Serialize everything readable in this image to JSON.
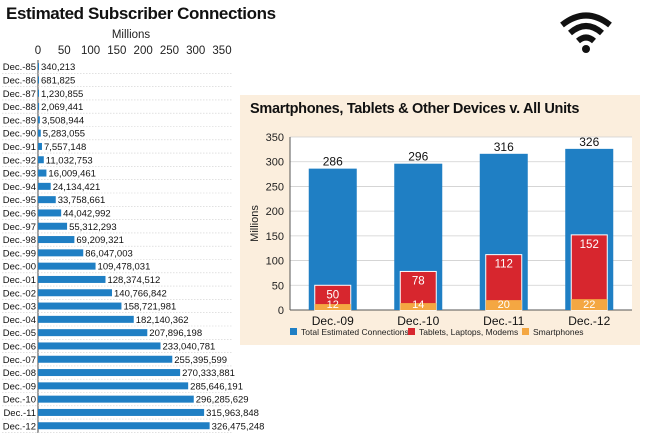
{
  "title": "Estimated Subscriber Connections",
  "chart_data": [
    {
      "type": "bar",
      "orientation": "horizontal",
      "title": "Estimated Subscriber Connections",
      "xlabel": "Millions",
      "xlim": [
        0,
        350
      ],
      "ticks": [
        0,
        50,
        100,
        150,
        200,
        250,
        300,
        350
      ],
      "color": "#1f7fc4",
      "categories": [
        "Dec.-85",
        "Dec.-86",
        "Dec.-87",
        "Dec.-88",
        "Dec.-89",
        "Dec.-90",
        "Dec.-91",
        "Dec.-92",
        "Dec.-93",
        "Dec.-94",
        "Dec.-95",
        "Dec.-96",
        "Dec.-97",
        "Dec.-98",
        "Dec.-99",
        "Dec.-00",
        "Dec.-01",
        "Dec.-02",
        "Dec.-03",
        "Dec.-04",
        "Dec.-05",
        "Dec.-06",
        "Dec.-07",
        "Dec.-08",
        "Dec.-09",
        "Dec.-10",
        "Dec.-11",
        "Dec.-12"
      ],
      "values": [
        340213,
        681825,
        1230855,
        2069441,
        3508944,
        5283055,
        7557148,
        11032753,
        16009461,
        24134421,
        33758661,
        44042992,
        55312293,
        69209321,
        86047003,
        109478031,
        128374512,
        140766842,
        158721981,
        182140362,
        207896198,
        233040781,
        255395599,
        270333881,
        285646191,
        296285629,
        315963848,
        326475248
      ],
      "labels": [
        "340,213",
        "681,825",
        "1,230,855",
        "2,069,441",
        "3,508,944",
        "5,283,055",
        "7,557,148",
        "11,032,753",
        "16,009,461",
        "24,134,421",
        "33,758,661",
        "44,042,992",
        "55,312,293",
        "69,209,321",
        "86,047,003",
        "109,478,031",
        "128,374,512",
        "140,766,842",
        "158,721,981",
        "182,140,362",
        "207,896,198",
        "233,040,781",
        "255,395,599",
        "270,333,881",
        "285,646,191",
        "296,285,629",
        "315,963,848",
        "326,475,248"
      ]
    },
    {
      "type": "bar",
      "title": "Smartphones, Tablets & Other Devices v. All Units",
      "ylabel": "Millions",
      "ylim": [
        0,
        350
      ],
      "ticks": [
        0,
        50,
        100,
        150,
        200,
        250,
        300,
        350
      ],
      "grid": true,
      "categories": [
        "Dec.-09",
        "Dec.-10",
        "Dec.-11",
        "Dec.-12"
      ],
      "series": [
        {
          "name": "Total Estimated Connections",
          "color": "#1f7fc4",
          "values": [
            286,
            296,
            316,
            326
          ]
        },
        {
          "name": "Tablets, Laptops, Modems",
          "color": "#d7262e",
          "values": [
            50,
            78,
            112,
            152
          ]
        },
        {
          "name": "Smartphones",
          "color": "#f4a742",
          "values": [
            12,
            14,
            20,
            22
          ]
        }
      ],
      "legend_position": "bottom"
    }
  ],
  "wifi_icon": "wifi-icon"
}
